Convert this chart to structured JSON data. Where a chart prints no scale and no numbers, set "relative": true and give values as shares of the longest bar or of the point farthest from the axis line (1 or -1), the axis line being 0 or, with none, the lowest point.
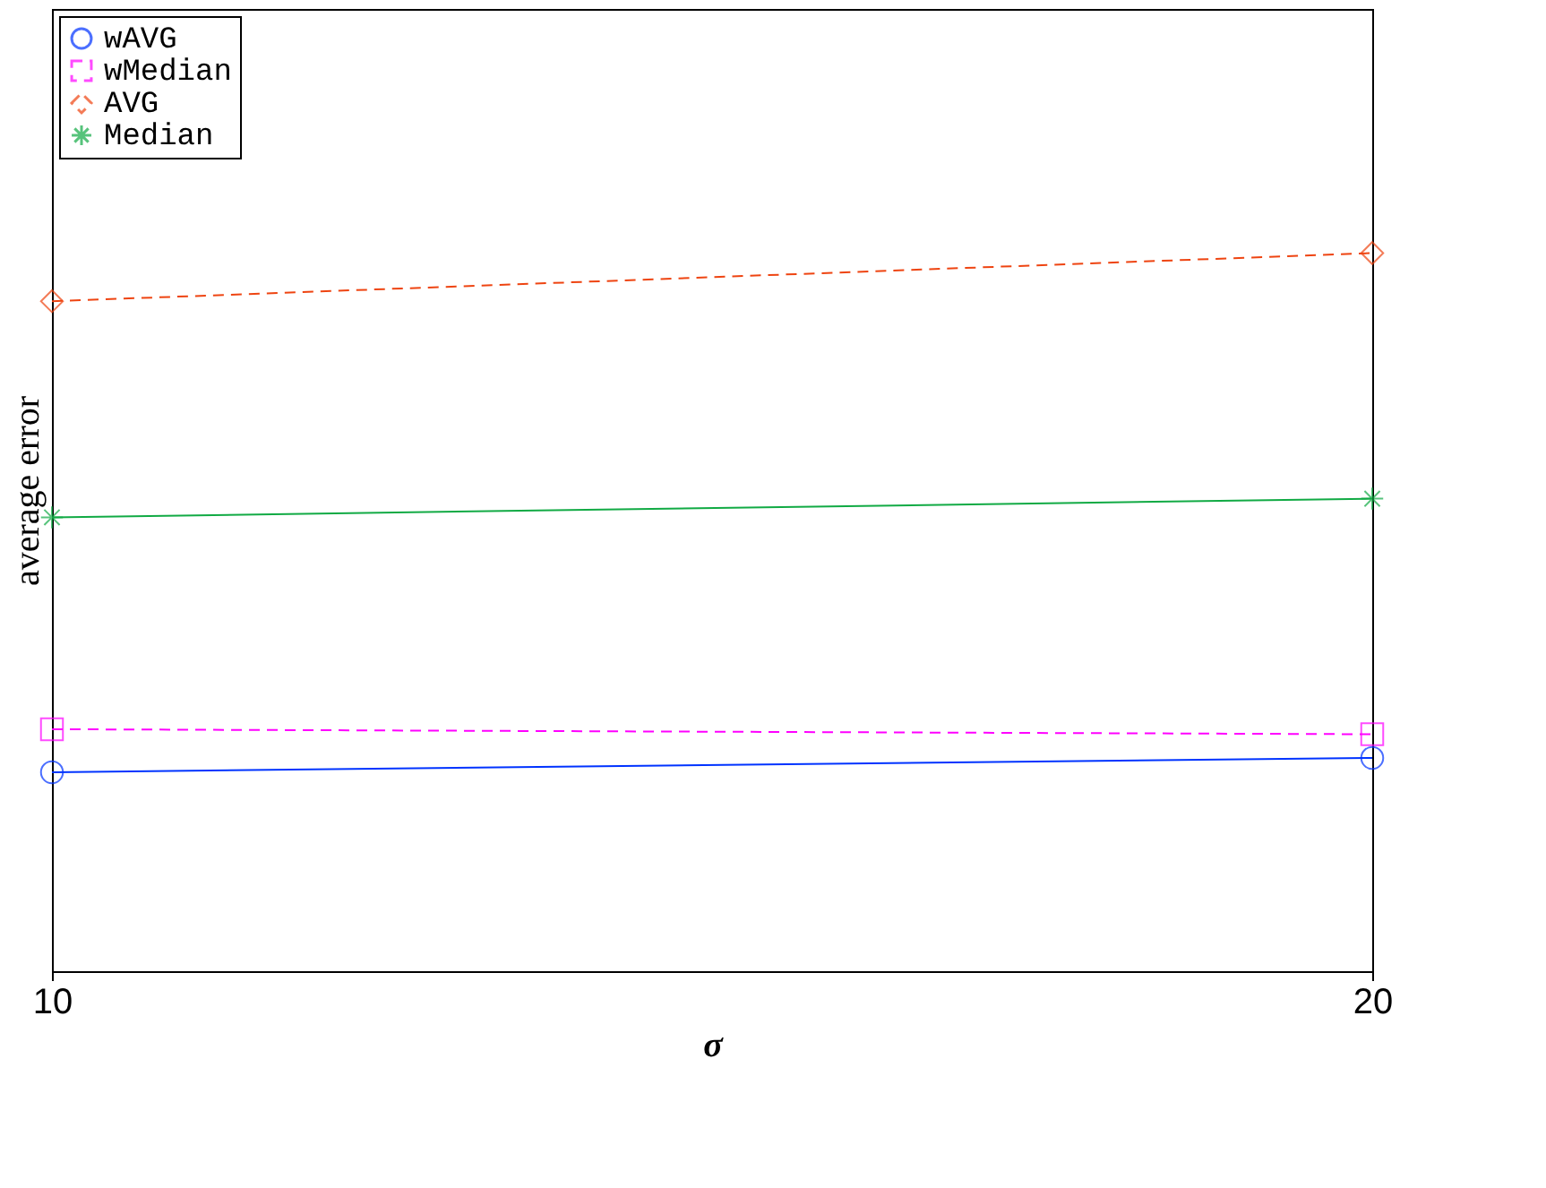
{
  "chart_data": {
    "type": "line",
    "xlabel": "σ",
    "ylabel": "average error",
    "x": [
      10,
      20
    ],
    "xlim": [
      10,
      20
    ],
    "xticks": [
      10,
      20
    ],
    "relative": true,
    "legend": "top left",
    "series": [
      {
        "name": "wAVG",
        "color": "#0033ff",
        "values": [
          0.277,
          0.297
        ],
        "marker": "circle",
        "line_style": "solid"
      },
      {
        "name": "wMedian",
        "color": "#ff00ff",
        "values": [
          0.337,
          0.33
        ],
        "marker": "square",
        "line_style": "dashed"
      },
      {
        "name": "AVG",
        "color": "#ee4411",
        "values": [
          0.933,
          1
        ],
        "marker": "diamond",
        "line_style": "dashed"
      },
      {
        "name": "Median",
        "color": "#11aa44",
        "values": [
          0.632,
          0.658
        ],
        "marker": "cross",
        "line_style": "solid"
      }
    ]
  }
}
